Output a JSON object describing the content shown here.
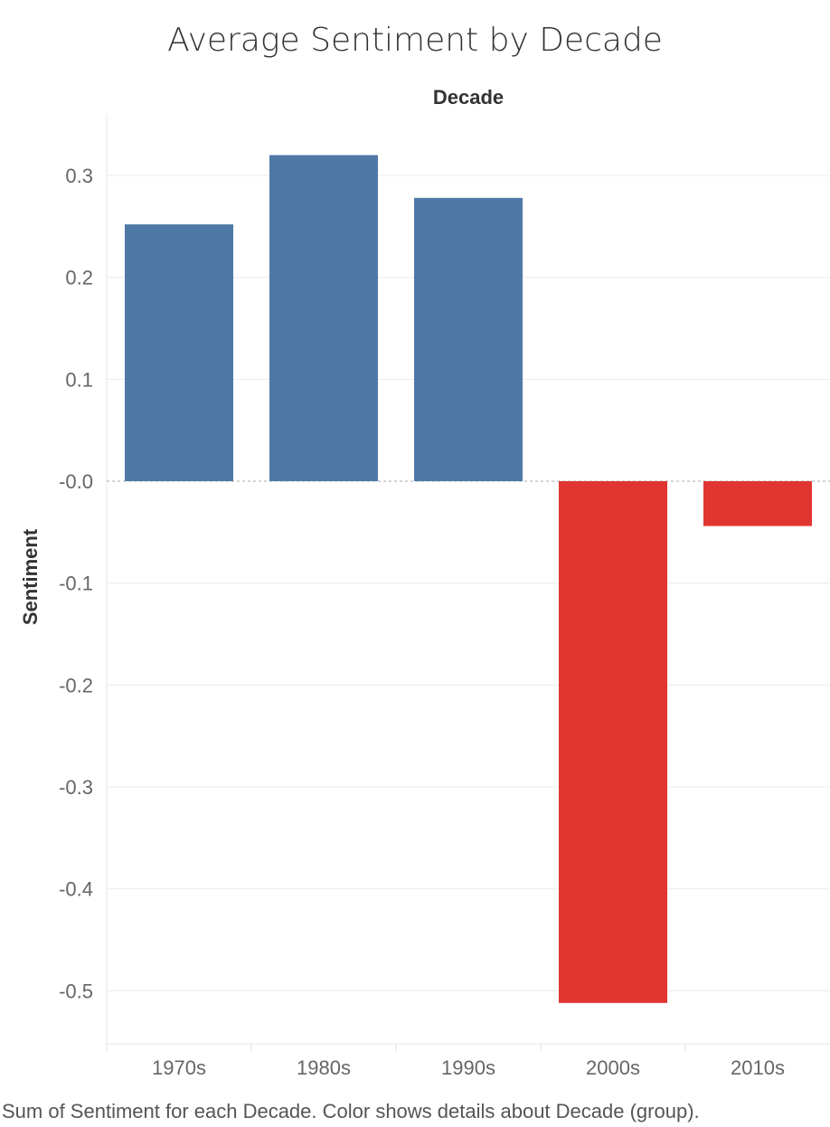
{
  "chart_data": {
    "type": "bar",
    "title": "Average Sentiment by Decade",
    "column_header": "Decade",
    "ylabel": "Sentiment",
    "xlabel": "",
    "categories": [
      "1970s",
      "1980s",
      "1990s",
      "2000s",
      "2010s"
    ],
    "values": [
      0.252,
      0.32,
      0.278,
      -0.512,
      -0.044
    ],
    "ylim": [
      -0.56,
      0.36
    ],
    "yticks": [
      0.3,
      0.2,
      0.1,
      0.0,
      -0.1,
      -0.2,
      -0.3,
      -0.4,
      -0.5
    ],
    "ytick_labels": [
      "0.3",
      "0.2",
      "0.1",
      "-0.0",
      "-0.1",
      "-0.2",
      "-0.3",
      "-0.4",
      "-0.5"
    ],
    "grid": true,
    "colors": {
      "positive": "#4e79a7",
      "negative": "#e03531",
      "gridline": "#ececec",
      "zero_line": "#aaaaaa"
    },
    "caption": "Sum of Sentiment for each Decade.  Color shows details about Decade (group)."
  }
}
